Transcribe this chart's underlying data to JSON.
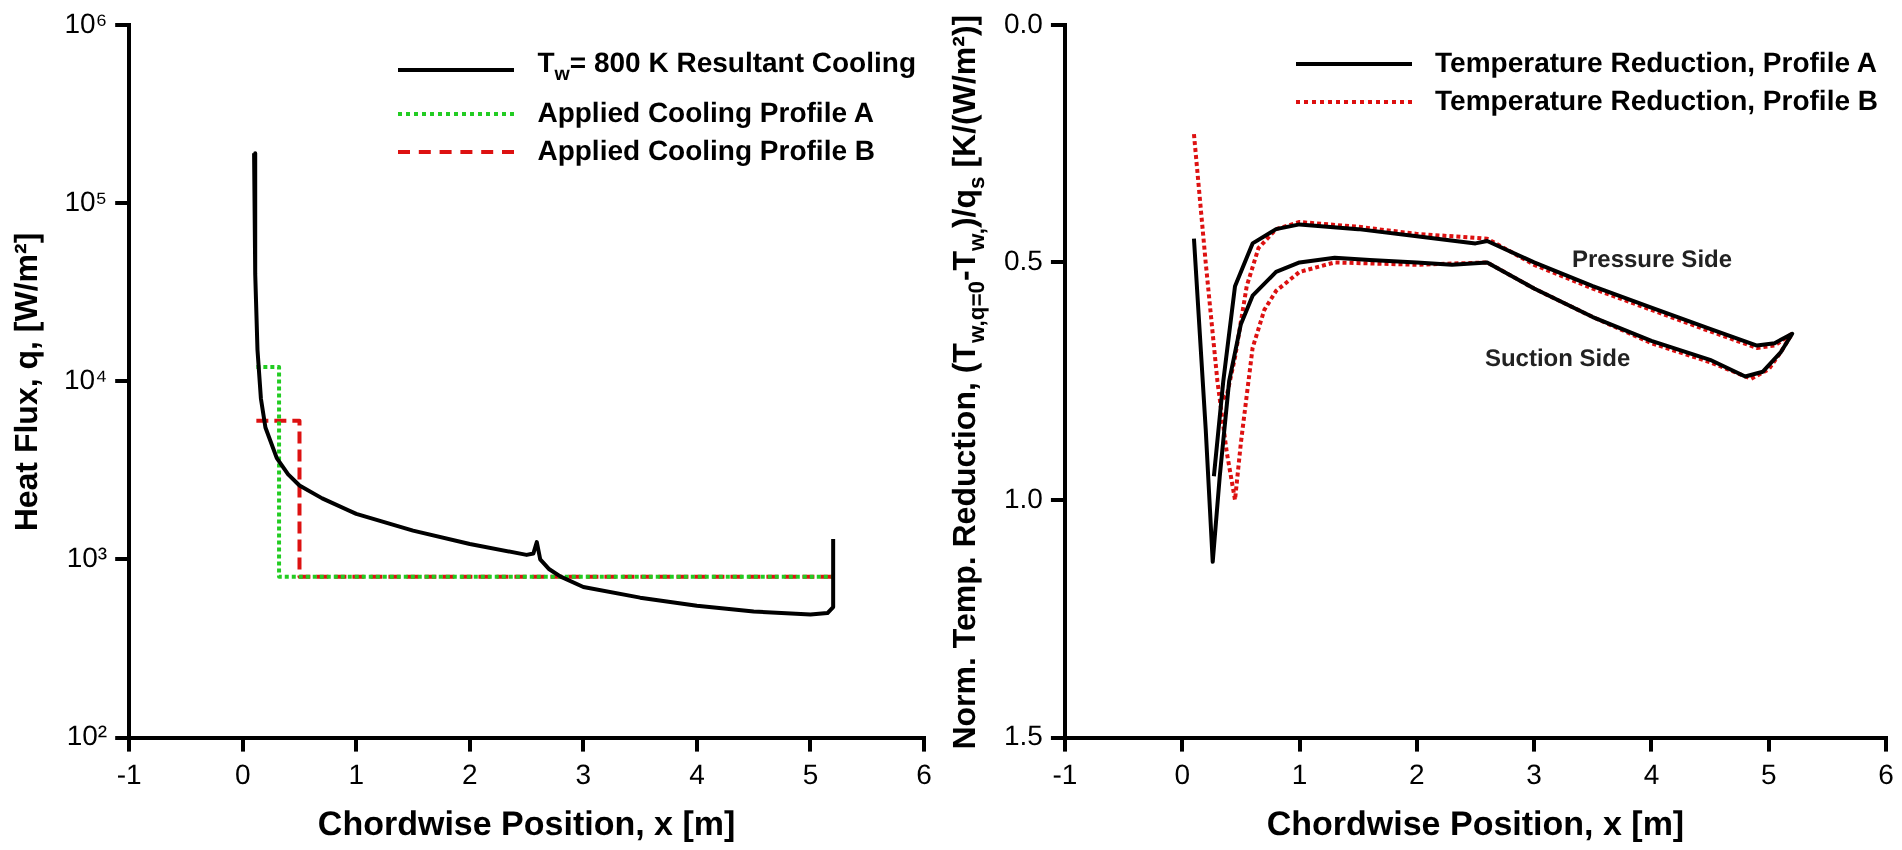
{
  "chart_data": [
    {
      "type": "line",
      "xlabel": "Chordwise Position, x [m]",
      "ylabel": "Heat Flux, q, [W/m²]",
      "log": "y",
      "xlim": [
        -1,
        6
      ],
      "xticks": [
        -1,
        0,
        1,
        2,
        3,
        4,
        5,
        6
      ],
      "ylim": [
        100,
        1000000
      ],
      "yticks": [
        {
          "value": 100,
          "label": "10²"
        },
        {
          "value": 1000,
          "label": "10³"
        },
        {
          "value": 10000,
          "label": "10⁴"
        },
        {
          "value": 100000,
          "label": "10⁵"
        },
        {
          "value": 1000000,
          "label": "10⁶"
        }
      ],
      "grid": false,
      "legend": "top right",
      "marker": "none",
      "series": [
        {
          "name": "T$_{w}$= 800 K Resultant Cooling",
          "color": "#000000",
          "line_style": "solid",
          "x": [
            0.1,
            0.11,
            0.13,
            0.16,
            0.2,
            0.3,
            0.4,
            0.5,
            0.7,
            1,
            1.5,
            2,
            2.5,
            2.56,
            2.59,
            2.62,
            2.7,
            2.8,
            3,
            3.5,
            4,
            4.5,
            5,
            5.15,
            5.2,
            5.2
          ],
          "values": [
            190000,
            40000,
            15000,
            8000,
            5500,
            3700,
            3000,
            2600,
            2200,
            1800,
            1450,
            1220,
            1060,
            1080,
            1250,
            1000,
            880,
            800,
            700,
            610,
            550,
            510,
            490,
            500,
            540,
            1300
          ]
        },
        {
          "name": "Applied Cooling Profile A",
          "color": "#22cc22",
          "line_style": "dotted",
          "x": [
            0.12,
            0.32,
            0.32,
            5.2
          ],
          "values": [
            12000,
            12000,
            800,
            800
          ]
        },
        {
          "name": "Applied Cooling Profile B",
          "color": "#dd1111",
          "line_style": "dashed",
          "x": [
            0.12,
            0.5,
            0.5,
            5.2
          ],
          "values": [
            6000,
            6000,
            800,
            800
          ]
        }
      ]
    },
    {
      "type": "line",
      "xlabel": "Chordwise Position, x [m]",
      "ylabel": "Norm. Temp. Reduction, (T$_{w,q=0}$-T$_{w,}$)/q$_{s}$ [K/(W/m²)]",
      "xlim": [
        -1,
        6
      ],
      "xticks": [
        -1,
        0,
        1,
        2,
        3,
        4,
        5,
        6
      ],
      "ylim": [
        1.5,
        0
      ],
      "yticks": [
        {
          "value": 0,
          "label": "0.0"
        },
        0.5,
        {
          "value": 1,
          "label": "1.0"
        },
        1.5
      ],
      "grid": false,
      "legend": "top right",
      "marker": "none",
      "annotations": [
        "Pressure Side",
        "Suction Side"
      ],
      "series": [
        {
          "name": "Temperature Reduction, Profile A",
          "color": "#000000",
          "line_style": "solid",
          "x": [
            0.1,
            0.2,
            0.26,
            0.32,
            0.4,
            0.5,
            0.6,
            0.8,
            1.0,
            1.3,
            1.6,
            2.0,
            2.3,
            2.6,
            3.0,
            3.5,
            4.0,
            4.5,
            4.8,
            4.95,
            5.1,
            5.2,
            5.05,
            4.9,
            4.5,
            4.0,
            3.5,
            3.0,
            2.6,
            2.5,
            2.0,
            1.5,
            1.0,
            0.8,
            0.6,
            0.45,
            0.35,
            0.27
          ],
          "values": [
            0.45,
            0.85,
            1.13,
            0.95,
            0.75,
            0.63,
            0.57,
            0.52,
            0.5,
            0.49,
            0.495,
            0.5,
            0.505,
            0.5,
            0.555,
            0.615,
            0.665,
            0.705,
            0.74,
            0.73,
            0.69,
            0.65,
            0.67,
            0.675,
            0.64,
            0.595,
            0.55,
            0.5,
            0.455,
            0.46,
            0.445,
            0.43,
            0.42,
            0.43,
            0.46,
            0.55,
            0.75,
            0.95
          ]
        },
        {
          "name": "Temperature Reduction, Profile B",
          "color": "#dd1111",
          "line_style": "dotted",
          "x": [
            0.1,
            0.2,
            0.3,
            0.38,
            0.45,
            0.5,
            0.6,
            0.7,
            0.8,
            1.0,
            1.3,
            2.0,
            2.6,
            3.0,
            3.5,
            4.0,
            4.5,
            4.85,
            5.0,
            5.1,
            5.2,
            5.05,
            4.9,
            4.5,
            4.0,
            3.5,
            3.0,
            2.6,
            2.0,
            1.5,
            1.0,
            0.8,
            0.65,
            0.55,
            0.45,
            0.38,
            0.33
          ],
          "values": [
            0.23,
            0.5,
            0.75,
            0.9,
            1.0,
            0.88,
            0.68,
            0.6,
            0.56,
            0.52,
            0.5,
            0.505,
            0.5,
            0.555,
            0.615,
            0.67,
            0.71,
            0.745,
            0.725,
            0.69,
            0.65,
            0.675,
            0.68,
            0.645,
            0.6,
            0.555,
            0.505,
            0.45,
            0.44,
            0.425,
            0.415,
            0.43,
            0.47,
            0.55,
            0.7,
            0.78,
            0.79
          ]
        }
      ]
    }
  ]
}
